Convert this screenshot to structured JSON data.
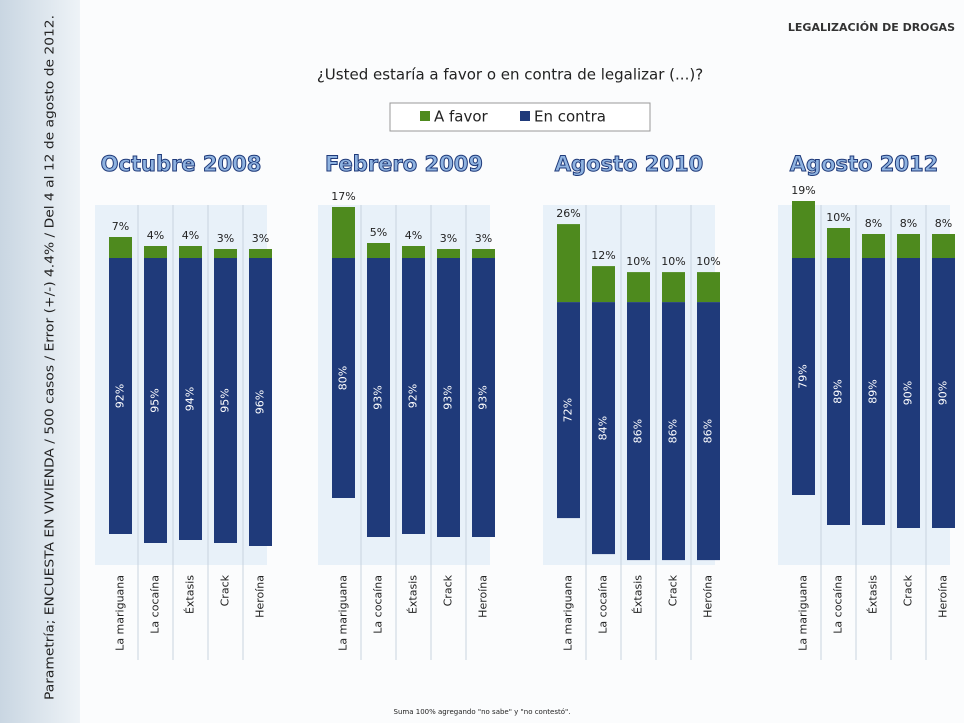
{
  "page": {
    "header": "LEGALIZACIÓN DE DROGAS",
    "question": "¿Usted estaría a favor o en contra de legalizar (...)?",
    "side_note": "Parametría; ENCUESTA EN VIVIENDA / 500 casos / Error (+/-) 4.4% / Del 4 al 12 de agosto de 2012.",
    "footnote": "Suma 100% agregando \"no sabe\" y \"no contestó\"."
  },
  "chart_data": [
    {
      "type": "bar",
      "title": "Octubre 2008",
      "categories": [
        "La mariguana",
        "La cocaína",
        "Éxtasis",
        "Crack",
        "Heroína"
      ],
      "series": [
        {
          "name": "A favor",
          "color": "#4e8a1e",
          "values": [
            7,
            4,
            4,
            3,
            3
          ],
          "value_labels": [
            "7%",
            "4%",
            "4%",
            "3%",
            "3%"
          ]
        },
        {
          "name": "En contra",
          "color": "#1f3a7a",
          "values": [
            92,
            95,
            94,
            95,
            96
          ],
          "value_labels": [
            "92%",
            "95%",
            "94%",
            "95%",
            "96%"
          ]
        }
      ]
    },
    {
      "type": "bar",
      "title": "Febrero 2009",
      "categories": [
        "La mariguana",
        "La cocaína",
        "Éxtasis",
        "Crack",
        "Heroína"
      ],
      "series": [
        {
          "name": "A favor",
          "color": "#4e8a1e",
          "values": [
            17,
            5,
            4,
            3,
            3
          ],
          "value_labels": [
            "17%",
            "5%",
            "4%",
            "3%",
            "3%"
          ]
        },
        {
          "name": "En contra",
          "color": "#1f3a7a",
          "values": [
            80,
            93,
            92,
            93,
            93
          ],
          "value_labels": [
            "80%",
            "93%",
            "92%",
            "93%",
            "93%"
          ]
        }
      ]
    },
    {
      "type": "bar",
      "title": "Agosto 2010",
      "categories": [
        "La mariguana",
        "La cocaína",
        "Éxtasis",
        "Crack",
        "Heroína"
      ],
      "series": [
        {
          "name": "A favor",
          "color": "#4e8a1e",
          "values": [
            26,
            12,
            10,
            10,
            10
          ],
          "value_labels": [
            "26%",
            "12%",
            "10%",
            "10%",
            "10%"
          ]
        },
        {
          "name": "En contra",
          "color": "#1f3a7a",
          "values": [
            72,
            84,
            86,
            86,
            86
          ],
          "value_labels": [
            "72%",
            "84%",
            "86%",
            "86%",
            "86%"
          ]
        }
      ]
    },
    {
      "type": "bar",
      "title": "Agosto 2012",
      "categories": [
        "La mariguana",
        "La cocaína",
        "Éxtasis",
        "Crack",
        "Heroína"
      ],
      "series": [
        {
          "name": "A favor",
          "color": "#4e8a1e",
          "values": [
            19,
            10,
            8,
            8,
            8
          ],
          "value_labels": [
            "19%",
            "10%",
            "8%",
            "8%",
            "8%"
          ]
        },
        {
          "name": "En contra",
          "color": "#1f3a7a",
          "values": [
            79,
            89,
            89,
            90,
            90
          ],
          "value_labels": [
            "79%",
            "89%",
            "89%",
            "90%",
            "90%"
          ]
        }
      ]
    }
  ]
}
